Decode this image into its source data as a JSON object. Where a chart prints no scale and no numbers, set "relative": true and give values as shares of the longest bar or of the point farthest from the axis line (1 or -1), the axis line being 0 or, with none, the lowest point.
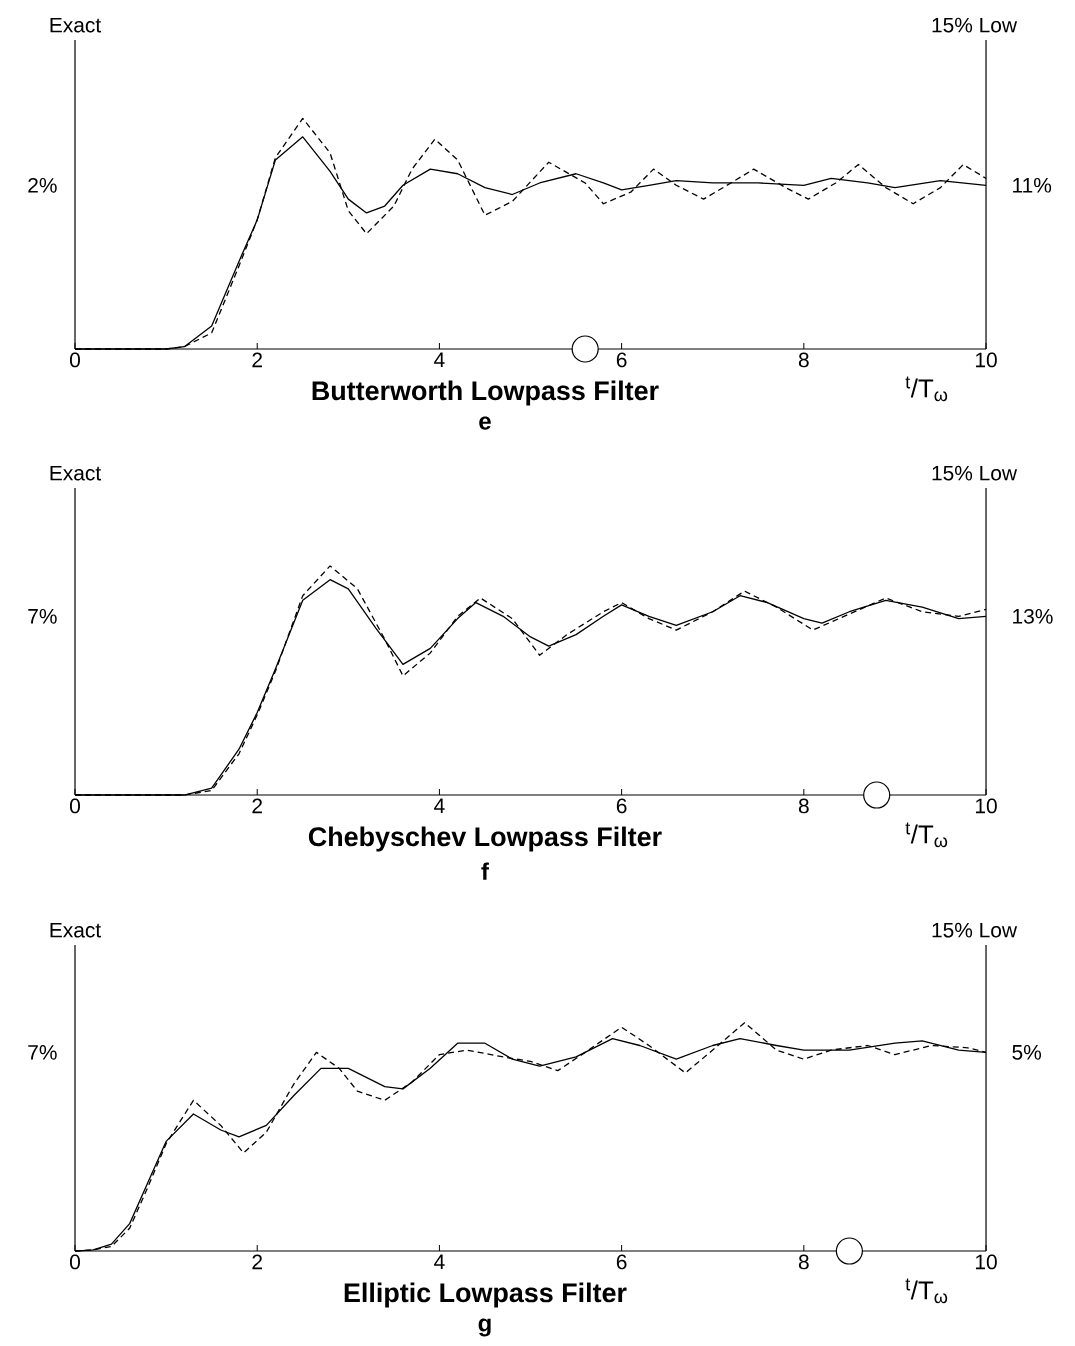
{
  "chart_data": [
    {
      "type": "line",
      "title": "Butterworth Lowpass Filter",
      "subtitle": "e",
      "xlabel": "$^{t}$/T$_{ω}$",
      "relative": true,
      "xlim": [
        0,
        10
      ],
      "xticks": [
        0,
        2,
        4,
        6,
        8,
        10
      ],
      "annotations": [
        "Exact",
        "15% Low",
        "2%",
        "11%"
      ],
      "series": [
        {
          "line_style": "solid",
          "color": "#000000",
          "x": [
            0,
            1.0,
            1.2,
            1.5,
            1.8,
            2.0,
            2.2,
            2.5,
            2.8,
            3.0,
            3.2,
            3.4,
            3.6,
            3.9,
            4.2,
            4.5,
            4.8,
            5.1,
            5.5,
            5.8,
            6.0,
            6.3,
            6.6,
            7.0,
            7.5,
            8.0,
            8.3,
            8.7,
            9.0,
            9.5,
            10
          ],
          "values": [
            0,
            0,
            0.01,
            0.1,
            0.38,
            0.56,
            0.82,
            0.92,
            0.77,
            0.65,
            0.59,
            0.62,
            0.71,
            0.78,
            0.76,
            0.7,
            0.67,
            0.72,
            0.76,
            0.72,
            0.69,
            0.71,
            0.73,
            0.72,
            0.72,
            0.71,
            0.74,
            0.72,
            0.7,
            0.73,
            0.71
          ]
        },
        {
          "line_style": "dashed",
          "color": "#000000",
          "x": [
            0,
            1.0,
            1.2,
            1.5,
            1.8,
            2.0,
            2.2,
            2.5,
            2.8,
            3.0,
            3.2,
            3.5,
            3.7,
            3.95,
            4.2,
            4.5,
            4.8,
            5.2,
            5.6,
            5.8,
            6.1,
            6.35,
            6.6,
            6.9,
            7.2,
            7.45,
            7.8,
            8.05,
            8.35,
            8.6,
            8.9,
            9.2,
            9.5,
            9.75,
            10
          ],
          "values": [
            0,
            0,
            0.01,
            0.07,
            0.36,
            0.56,
            0.83,
            1.0,
            0.85,
            0.6,
            0.5,
            0.62,
            0.78,
            0.91,
            0.82,
            0.58,
            0.64,
            0.81,
            0.72,
            0.63,
            0.68,
            0.78,
            0.71,
            0.65,
            0.72,
            0.78,
            0.7,
            0.65,
            0.72,
            0.8,
            0.7,
            0.63,
            0.7,
            0.8,
            0.74
          ]
        },
        {
          "type": "scatter",
          "marker": "circle",
          "color": "#000000",
          "x": [
            5.6
          ],
          "values": [
            0
          ]
        }
      ]
    },
    {
      "type": "line",
      "title": "Chebyschev Lowpass Filter",
      "subtitle": "f",
      "xlabel": "$^{t}$/T$_{ω}$",
      "relative": true,
      "xlim": [
        0,
        10
      ],
      "xticks": [
        0,
        2,
        4,
        6,
        8,
        10
      ],
      "annotations": [
        "Exact",
        "15% Low",
        "7%",
        "13%"
      ],
      "series": [
        {
          "line_style": "solid",
          "color": "#000000",
          "x": [
            0,
            1.2,
            1.5,
            1.8,
            2.0,
            2.2,
            2.5,
            2.8,
            3.0,
            3.3,
            3.6,
            3.9,
            4.2,
            4.4,
            4.7,
            5.0,
            5.2,
            5.5,
            5.8,
            6.0,
            6.3,
            6.6,
            7.0,
            7.3,
            7.6,
            8.0,
            8.2,
            8.5,
            8.9,
            9.3,
            9.7,
            10
          ],
          "values": [
            0,
            0,
            0.03,
            0.2,
            0.36,
            0.55,
            0.85,
            0.94,
            0.9,
            0.73,
            0.57,
            0.64,
            0.77,
            0.84,
            0.78,
            0.69,
            0.65,
            0.7,
            0.78,
            0.83,
            0.78,
            0.74,
            0.8,
            0.87,
            0.84,
            0.77,
            0.75,
            0.8,
            0.85,
            0.82,
            0.77,
            0.78
          ]
        },
        {
          "line_style": "dashed",
          "color": "#000000",
          "x": [
            0,
            1.2,
            1.5,
            1.8,
            2.0,
            2.2,
            2.5,
            2.8,
            3.1,
            3.4,
            3.6,
            3.9,
            4.2,
            4.45,
            4.8,
            5.1,
            5.4,
            5.8,
            6.0,
            6.3,
            6.6,
            7.0,
            7.35,
            7.7,
            8.1,
            8.5,
            8.9,
            9.3,
            9.7,
            10
          ],
          "values": [
            0,
            0,
            0.02,
            0.18,
            0.35,
            0.54,
            0.87,
            1.0,
            0.9,
            0.68,
            0.52,
            0.62,
            0.78,
            0.86,
            0.77,
            0.61,
            0.7,
            0.8,
            0.84,
            0.77,
            0.72,
            0.8,
            0.89,
            0.82,
            0.72,
            0.79,
            0.86,
            0.8,
            0.78,
            0.81
          ]
        },
        {
          "type": "scatter",
          "marker": "circle",
          "color": "#000000",
          "x": [
            8.8
          ],
          "values": [
            0
          ]
        }
      ]
    },
    {
      "type": "line",
      "title": "Elliptic Lowpass Filter",
      "subtitle": "g",
      "xlabel": "$^{t}$/T$_{ω}$",
      "relative": true,
      "xlim": [
        0,
        10
      ],
      "xticks": [
        0,
        2,
        4,
        6,
        8,
        10
      ],
      "annotations": [
        "Exact",
        "15% Low",
        "7%",
        "5%"
      ],
      "series": [
        {
          "line_style": "solid",
          "color": "#000000",
          "x": [
            0,
            0.2,
            0.4,
            0.6,
            0.8,
            1.0,
            1.3,
            1.6,
            1.8,
            2.1,
            2.4,
            2.7,
            3.0,
            3.4,
            3.6,
            3.9,
            4.2,
            4.5,
            4.8,
            5.1,
            5.5,
            5.9,
            6.2,
            6.6,
            7.0,
            7.3,
            7.7,
            8.0,
            8.5,
            9.0,
            9.3,
            9.7,
            10
          ],
          "values": [
            0,
            0.005,
            0.03,
            0.12,
            0.3,
            0.48,
            0.6,
            0.53,
            0.5,
            0.55,
            0.68,
            0.8,
            0.8,
            0.72,
            0.71,
            0.8,
            0.91,
            0.91,
            0.84,
            0.81,
            0.85,
            0.93,
            0.9,
            0.84,
            0.9,
            0.93,
            0.9,
            0.88,
            0.88,
            0.91,
            0.92,
            0.88,
            0.87
          ]
        },
        {
          "line_style": "dashed",
          "color": "#000000",
          "x": [
            0,
            0.2,
            0.4,
            0.6,
            0.8,
            1.0,
            1.3,
            1.6,
            1.85,
            2.1,
            2.4,
            2.65,
            2.9,
            3.1,
            3.4,
            3.7,
            4.0,
            4.3,
            4.7,
            5.0,
            5.3,
            5.6,
            6.0,
            6.3,
            6.7,
            7.0,
            7.35,
            7.7,
            8.0,
            8.3,
            8.7,
            9.0,
            9.4,
            9.8,
            10
          ],
          "values": [
            0,
            0.005,
            0.02,
            0.1,
            0.28,
            0.47,
            0.66,
            0.55,
            0.43,
            0.52,
            0.73,
            0.87,
            0.8,
            0.7,
            0.66,
            0.74,
            0.86,
            0.88,
            0.85,
            0.83,
            0.79,
            0.87,
            0.98,
            0.9,
            0.78,
            0.88,
            1.0,
            0.88,
            0.84,
            0.88,
            0.9,
            0.86,
            0.9,
            0.89,
            0.87
          ]
        },
        {
          "type": "scatter",
          "marker": "circle",
          "color": "#000000",
          "x": [
            8.5
          ],
          "values": [
            0
          ]
        }
      ]
    }
  ]
}
